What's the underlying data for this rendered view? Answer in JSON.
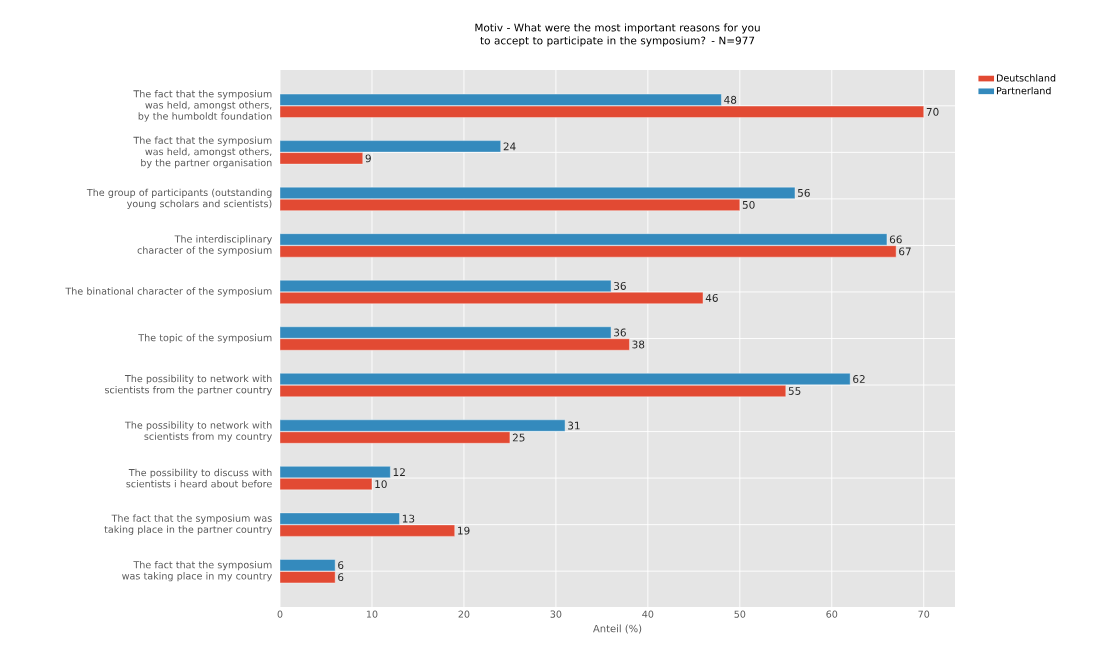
{
  "chart_data": {
    "type": "bar",
    "orientation": "horizontal",
    "title": "Motiv - What were the most important reasons for you to accept to participate in the symposium? - N=977",
    "xlabel": "Anteil (%)",
    "categories": [
      "The fact that the symposium was held, amongst others, by the humboldt foundation",
      "The fact that the symposium was held, amongst others, by the partner organisation",
      "The group of participants (outstanding young scholars and scientists)",
      "The interdisciplinary character of the symposium",
      "The binational character of the symposium",
      "The topic of the symposium",
      "The possibility to network with scientists from the partner country",
      "The possibility to network with scientists from my country",
      "The possibility to discuss with scientists i heard about before",
      "The fact that the symposium was taking place in the partner country",
      "The fact that the symposium was taking place in my country"
    ],
    "series": [
      {
        "name": "Deutschland",
        "color": "#e24a33",
        "values": [
          70,
          9,
          50,
          67,
          46,
          38,
          55,
          25,
          10,
          19,
          6
        ]
      },
      {
        "name": "Partnerland",
        "color": "#348abd",
        "values": [
          48,
          24,
          56,
          66,
          36,
          36,
          62,
          31,
          12,
          13,
          6
        ]
      }
    ],
    "xlim": [
      0,
      73.4
    ],
    "xticks": [
      0,
      10,
      20,
      30,
      40,
      50,
      60,
      70
    ],
    "data_labels": true,
    "grid": true,
    "legend": "top right"
  }
}
